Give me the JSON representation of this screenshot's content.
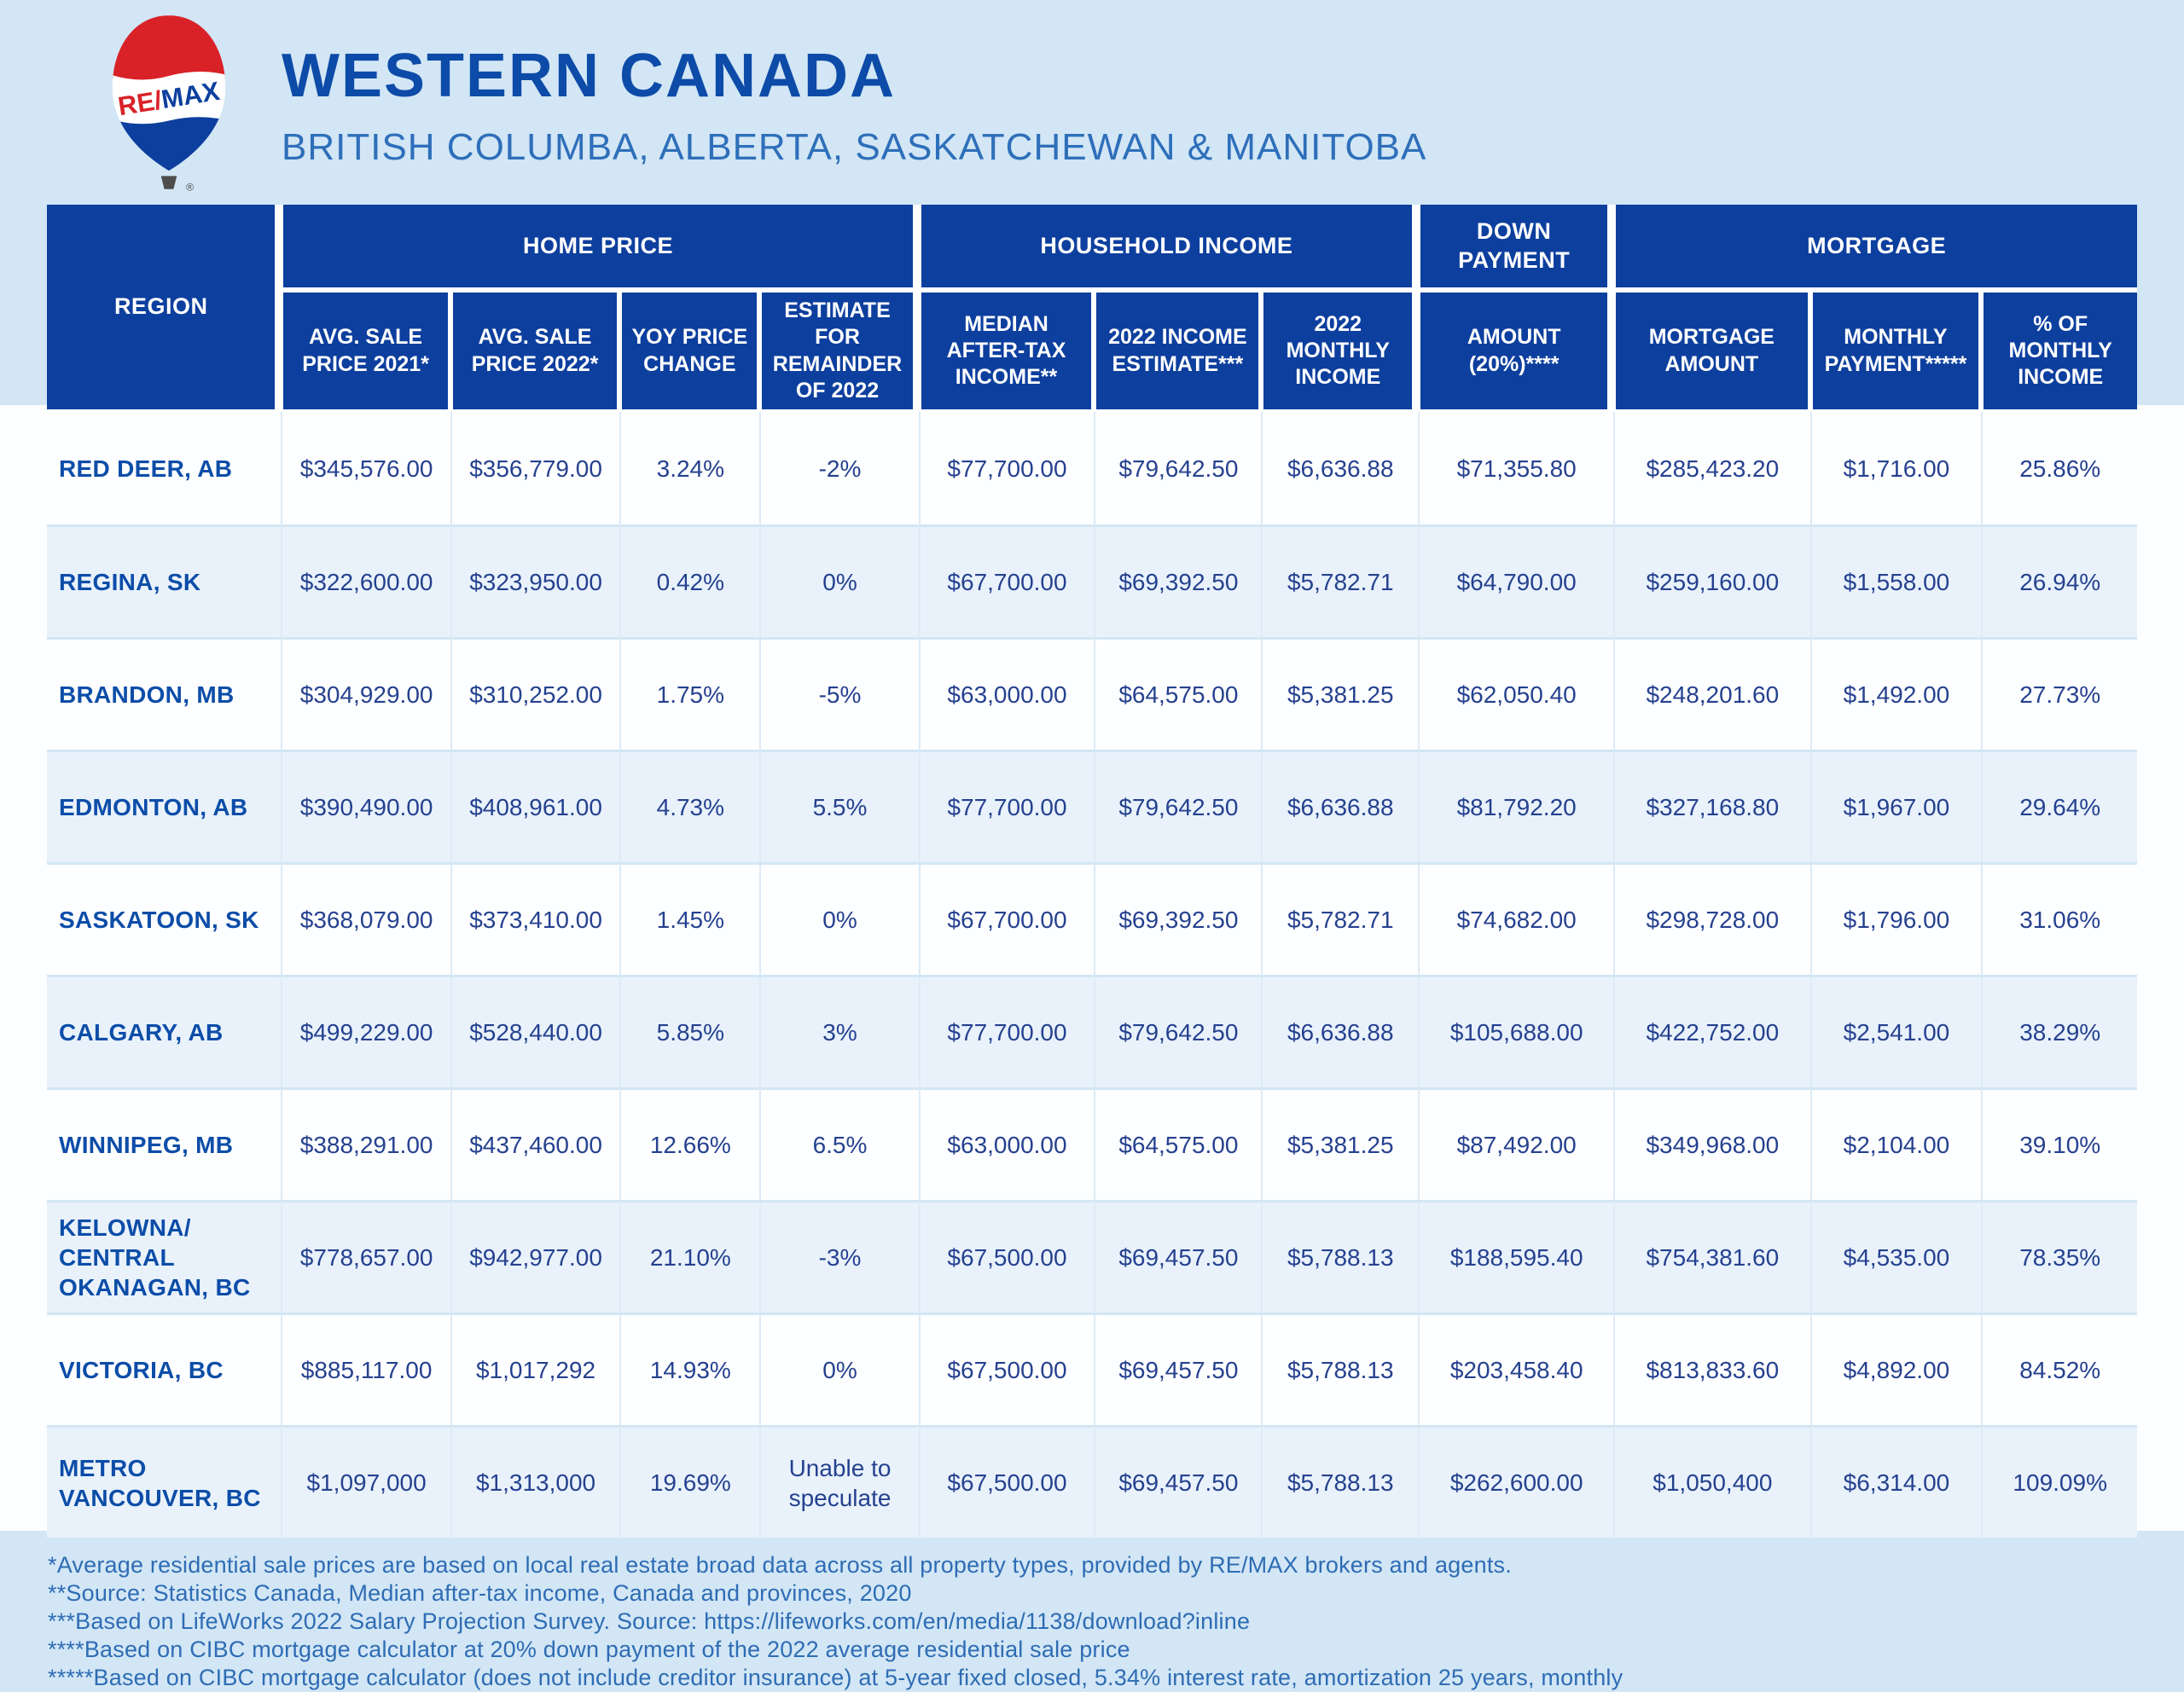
{
  "header": {
    "title": "WESTERN CANADA",
    "subtitle": "BRITISH COLUMBA, ALBERTA, SASKATCHEWAN & MANITOBA",
    "logo": {
      "brand_re": "RE/",
      "brand_max": "MAX",
      "registered_mark": "®",
      "icon": "remax-hot-air-balloon"
    }
  },
  "table": {
    "region_header": "REGION",
    "groups": [
      "HOME PRICE",
      "HOUSEHOLD INCOME",
      "DOWN PAYMENT",
      "MORTGAGE"
    ],
    "columns": [
      "AVG. SALE PRICE 2021*",
      "AVG. SALE PRICE 2022*",
      "YOY PRICE CHANGE",
      "ESTIMATE FOR REMAINDER OF 2022",
      "MEDIAN AFTER-TAX INCOME**",
      "2022 INCOME ESTIMATE***",
      "2022 MONTHLY INCOME",
      "AMOUNT (20%)****",
      "MORTGAGE AMOUNT",
      "MONTHLY PAYMENT*****",
      "% OF MONTHLY INCOME"
    ],
    "rows": [
      {
        "region": "RED DEER, AB",
        "values": [
          "$345,576.00",
          "$356,779.00",
          "3.24%",
          "-2%",
          "$77,700.00",
          "$79,642.50",
          "$6,636.88",
          "$71,355.80",
          "$285,423.20",
          "$1,716.00",
          "25.86%"
        ]
      },
      {
        "region": "REGINA, SK",
        "values": [
          "$322,600.00",
          "$323,950.00",
          "0.42%",
          "0%",
          "$67,700.00",
          "$69,392.50",
          "$5,782.71",
          "$64,790.00",
          "$259,160.00",
          "$1,558.00",
          "26.94%"
        ]
      },
      {
        "region": "BRANDON, MB",
        "values": [
          "$304,929.00",
          "$310,252.00",
          "1.75%",
          "-5%",
          "$63,000.00",
          "$64,575.00",
          "$5,381.25",
          "$62,050.40",
          "$248,201.60",
          "$1,492.00",
          "27.73%"
        ]
      },
      {
        "region": "EDMONTON, AB",
        "values": [
          "$390,490.00",
          "$408,961.00",
          "4.73%",
          "5.5%",
          "$77,700.00",
          "$79,642.50",
          "$6,636.88",
          "$81,792.20",
          "$327,168.80",
          "$1,967.00",
          "29.64%"
        ]
      },
      {
        "region": "SASKATOON, SK",
        "values": [
          "$368,079.00",
          "$373,410.00",
          "1.45%",
          "0%",
          "$67,700.00",
          "$69,392.50",
          "$5,782.71",
          "$74,682.00",
          "$298,728.00",
          "$1,796.00",
          "31.06%"
        ]
      },
      {
        "region": "CALGARY, AB",
        "values": [
          "$499,229.00",
          "$528,440.00",
          "5.85%",
          "3%",
          "$77,700.00",
          "$79,642.50",
          "$6,636.88",
          "$105,688.00",
          "$422,752.00",
          "$2,541.00",
          "38.29%"
        ]
      },
      {
        "region": "WINNIPEG, MB",
        "values": [
          "$388,291.00",
          "$437,460.00",
          "12.66%",
          "6.5%",
          "$63,000.00",
          "$64,575.00",
          "$5,381.25",
          "$87,492.00",
          "$349,968.00",
          "$2,104.00",
          "39.10%"
        ]
      },
      {
        "region": "KELOWNA/\nCENTRAL\nOKANAGAN, BC",
        "values": [
          "$778,657.00",
          "$942,977.00",
          "21.10%",
          "-3%",
          "$67,500.00",
          "$69,457.50",
          "$5,788.13",
          "$188,595.40",
          "$754,381.60",
          "$4,535.00",
          "78.35%"
        ]
      },
      {
        "region": "VICTORIA, BC",
        "values": [
          "$885,117.00",
          "$1,017,292",
          "14.93%",
          "0%",
          "$67,500.00",
          "$69,457.50",
          "$5,788.13",
          "$203,458.40",
          "$813,833.60",
          "$4,892.00",
          "84.52%"
        ]
      },
      {
        "region": "METRO\nVANCOUVER, BC",
        "values": [
          "$1,097,000",
          "$1,313,000",
          "19.69%",
          "Unable to speculate",
          "$67,500.00",
          "$69,457.50",
          "$5,788.13",
          "$262,600.00",
          "$1,050,400",
          "$6,314.00",
          "109.09%"
        ]
      }
    ]
  },
  "footnotes": [
    "*Average residential sale prices are based on local real estate broad data across all property types, provided by RE/MAX brokers and agents.",
    "**Source: Statistics Canada, Median after-tax income, Canada and provinces, 2020",
    "***Based on LifeWorks 2022 Salary Projection Survey. Source: https://lifeworks.com/en/media/1138/download?inline",
    "****Based on CIBC mortgage calculator at 20% down payment of the 2022 average residential sale price",
    "*****Based on CIBC mortgage calculator (does not include creditor insurance) at 5-year fixed closed, 5.34% interest rate, amortization 25 years, monthly"
  ],
  "colors": {
    "header_blue": "#0d3f9e",
    "title_blue": "#0d4ba8",
    "subtitle_blue": "#2e6fba",
    "value_navy": "#25418f",
    "region_blue": "#0c4da8",
    "footnote_blue": "#2e6cb4",
    "band_light_blue": "#d2e6f5",
    "row_alt_blue": "#e9f2fb",
    "logo_red": "#d92228"
  }
}
